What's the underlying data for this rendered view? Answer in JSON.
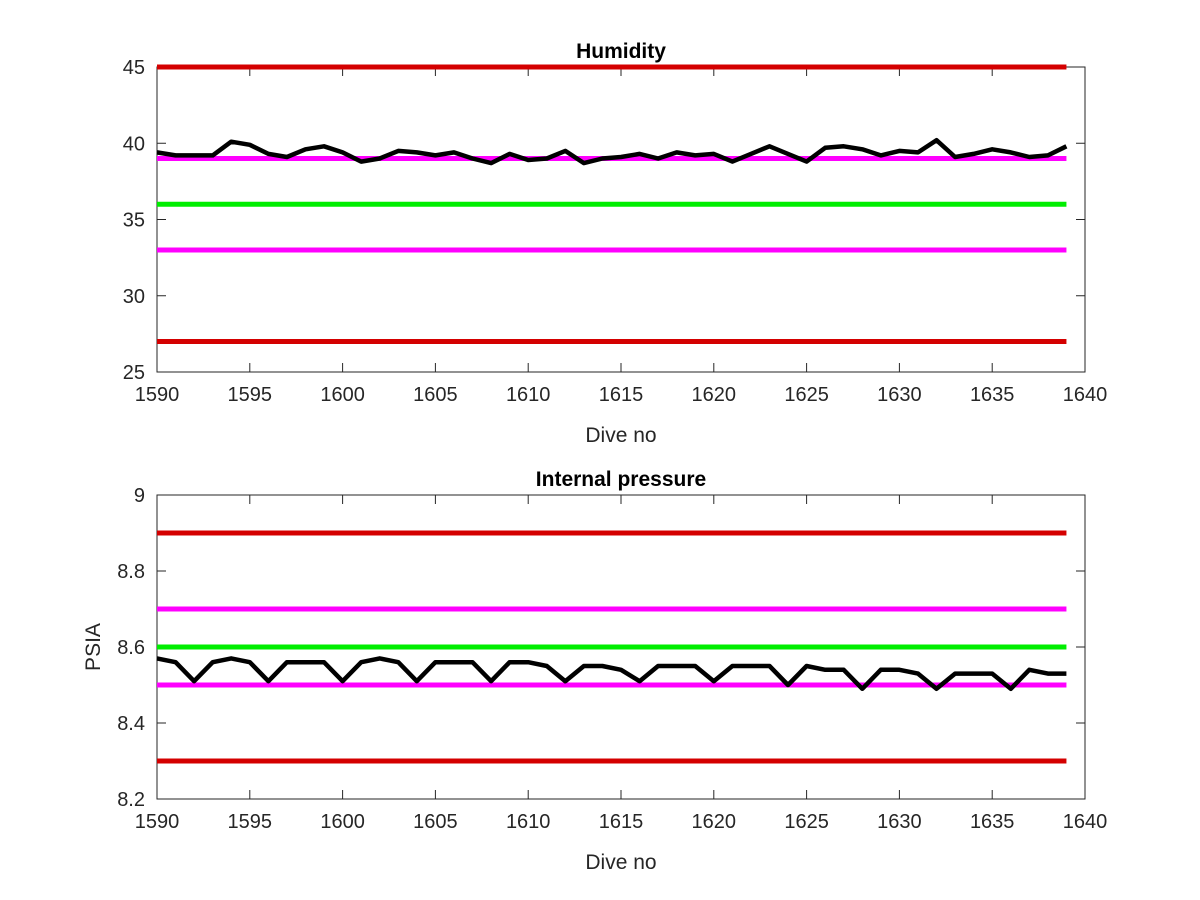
{
  "chart_data": [
    {
      "type": "line",
      "title": "Humidity",
      "xlabel": "Dive no",
      "ylabel": "",
      "xlim": [
        1590,
        1640
      ],
      "ylim": [
        25,
        45
      ],
      "xticks": [
        1590,
        1595,
        1600,
        1605,
        1610,
        1615,
        1620,
        1625,
        1630,
        1635,
        1640
      ],
      "yticks": [
        25,
        30,
        35,
        40,
        45
      ],
      "grid": false,
      "legend": "none",
      "reference_lines": [
        {
          "y": 45,
          "color": "#d40000"
        },
        {
          "y": 39,
          "color": "#ff00ff"
        },
        {
          "y": 36,
          "color": "#00ee00"
        },
        {
          "y": 33,
          "color": "#ff00ff"
        },
        {
          "y": 27,
          "color": "#d40000"
        }
      ],
      "series": [
        {
          "color": "#000000",
          "x": [
            1590,
            1591,
            1592,
            1593,
            1594,
            1595,
            1596,
            1597,
            1598,
            1599,
            1600,
            1601,
            1602,
            1603,
            1604,
            1605,
            1606,
            1607,
            1608,
            1609,
            1610,
            1611,
            1612,
            1613,
            1614,
            1615,
            1616,
            1617,
            1618,
            1619,
            1620,
            1621,
            1622,
            1623,
            1624,
            1625,
            1626,
            1627,
            1628,
            1629,
            1630,
            1631,
            1632,
            1633,
            1634,
            1635,
            1636,
            1637,
            1638,
            1639
          ],
          "y": [
            39.4,
            39.2,
            39.2,
            39.2,
            40.1,
            39.9,
            39.3,
            39.1,
            39.6,
            39.8,
            39.4,
            38.8,
            39.0,
            39.5,
            39.4,
            39.2,
            39.4,
            39.0,
            38.7,
            39.3,
            38.9,
            39.0,
            39.5,
            38.7,
            39.0,
            39.1,
            39.3,
            39.0,
            39.4,
            39.2,
            39.3,
            38.8,
            39.3,
            39.8,
            39.3,
            38.8,
            39.7,
            39.8,
            39.6,
            39.2,
            39.5,
            39.4,
            40.2,
            39.1,
            39.3,
            39.6,
            39.4,
            39.1,
            39.2,
            39.8
          ]
        }
      ]
    },
    {
      "type": "line",
      "title": "Internal pressure",
      "xlabel": "Dive no",
      "ylabel": "PSIA",
      "xlim": [
        1590,
        1640
      ],
      "ylim": [
        8.2,
        9
      ],
      "xticks": [
        1590,
        1595,
        1600,
        1605,
        1610,
        1615,
        1620,
        1625,
        1630,
        1635,
        1640
      ],
      "yticks": [
        8.2,
        8.4,
        8.6,
        8.8,
        9
      ],
      "grid": false,
      "legend": "none",
      "reference_lines": [
        {
          "y": 8.9,
          "color": "#d40000"
        },
        {
          "y": 8.7,
          "color": "#ff00ff"
        },
        {
          "y": 8.6,
          "color": "#00ee00"
        },
        {
          "y": 8.5,
          "color": "#ff00ff"
        },
        {
          "y": 8.3,
          "color": "#d40000"
        }
      ],
      "series": [
        {
          "color": "#000000",
          "x": [
            1590,
            1591,
            1592,
            1593,
            1594,
            1595,
            1596,
            1597,
            1598,
            1599,
            1600,
            1601,
            1602,
            1603,
            1604,
            1605,
            1606,
            1607,
            1608,
            1609,
            1610,
            1611,
            1612,
            1613,
            1614,
            1615,
            1616,
            1617,
            1618,
            1619,
            1620,
            1621,
            1622,
            1623,
            1624,
            1625,
            1626,
            1627,
            1628,
            1629,
            1630,
            1631,
            1632,
            1633,
            1634,
            1635,
            1636,
            1637,
            1638,
            1639
          ],
          "y": [
            8.57,
            8.56,
            8.51,
            8.56,
            8.57,
            8.56,
            8.51,
            8.56,
            8.56,
            8.56,
            8.51,
            8.56,
            8.57,
            8.56,
            8.51,
            8.56,
            8.56,
            8.56,
            8.51,
            8.56,
            8.56,
            8.55,
            8.51,
            8.55,
            8.55,
            8.54,
            8.51,
            8.55,
            8.55,
            8.55,
            8.51,
            8.55,
            8.55,
            8.55,
            8.5,
            8.55,
            8.54,
            8.54,
            8.49,
            8.54,
            8.54,
            8.53,
            8.49,
            8.53,
            8.53,
            8.53,
            8.49,
            8.54,
            8.53,
            8.53
          ]
        }
      ]
    }
  ]
}
